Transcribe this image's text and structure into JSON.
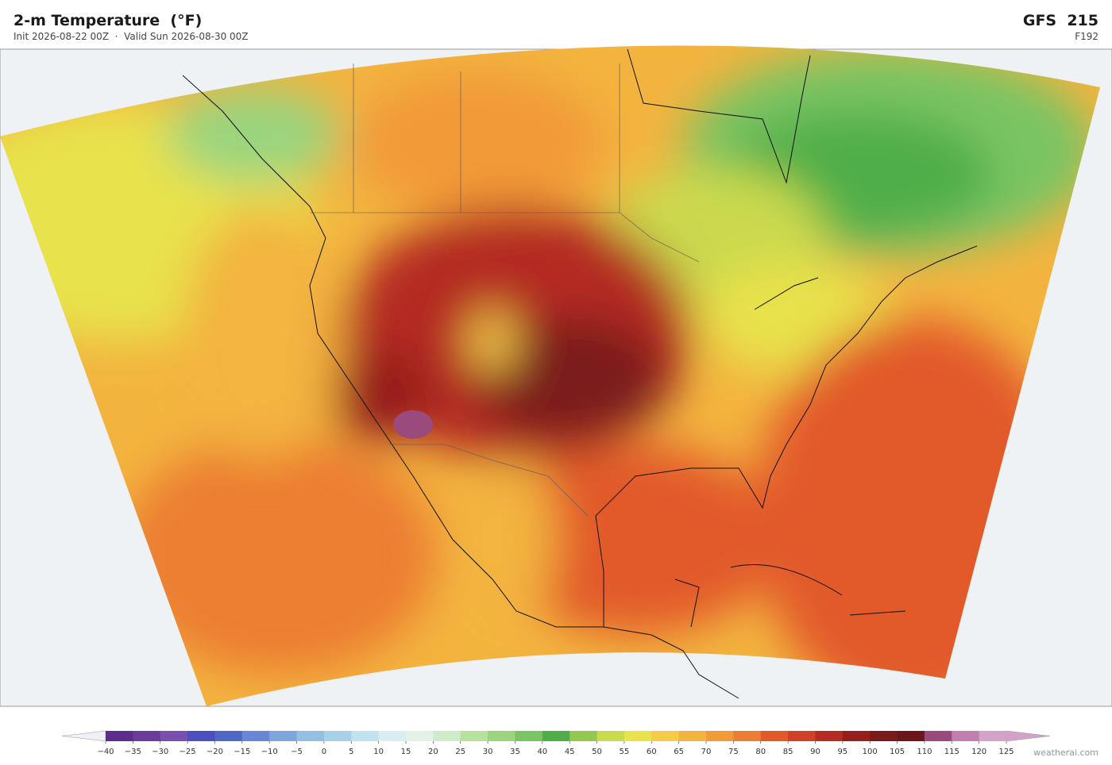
{
  "header": {
    "title": "2-m Temperature  (°F)",
    "subtitle": "Init 2026-08-22 00Z  ·  Valid Sun 2026-08-30 00Z",
    "model": "GFS  215",
    "forecast_hour": "F192"
  },
  "colorbar": {
    "ticks": [
      {
        "value": -40,
        "label": "−40"
      },
      {
        "value": -35,
        "label": "−35"
      },
      {
        "value": -30,
        "label": "−30"
      },
      {
        "value": -25,
        "label": "−25"
      },
      {
        "value": -20,
        "label": "−20"
      },
      {
        "value": -15,
        "label": "−15"
      },
      {
        "value": -10,
        "label": "−10"
      },
      {
        "value": -5,
        "label": "−5"
      },
      0,
      5,
      10,
      15,
      20,
      25,
      30,
      35,
      40,
      45,
      50,
      55,
      60,
      65,
      70,
      75,
      80,
      85,
      90,
      95,
      100,
      105,
      110,
      115,
      120,
      125
    ],
    "colors": [
      "#5a2d8f",
      "#6b3d9a",
      "#7a4fb0",
      "#4d4fbf",
      "#4f68c8",
      "#6888d5",
      "#7ea6dc",
      "#93bfe3",
      "#a8d0ea",
      "#c1e2ef",
      "#d8eef0",
      "#e3f2e8",
      "#d0ebc8",
      "#b8e19f",
      "#9ad47f",
      "#7ac464",
      "#4fae4a",
      "#95c64d",
      "#cbd94d",
      "#e8e24b",
      "#f4cc48",
      "#f3b43f",
      "#f29a38",
      "#ec7e33",
      "#e25a2a",
      "#d04127",
      "#b42c22",
      "#951e1e",
      "#7b1a1c",
      "#6b1618",
      "#9a4a7d",
      "#c07fb0",
      "#d4a1c9"
    ],
    "under_color": "#f2f0f6",
    "over_color": "#d4a1c9"
  },
  "footer": {
    "watermark": "weatherai.com"
  }
}
